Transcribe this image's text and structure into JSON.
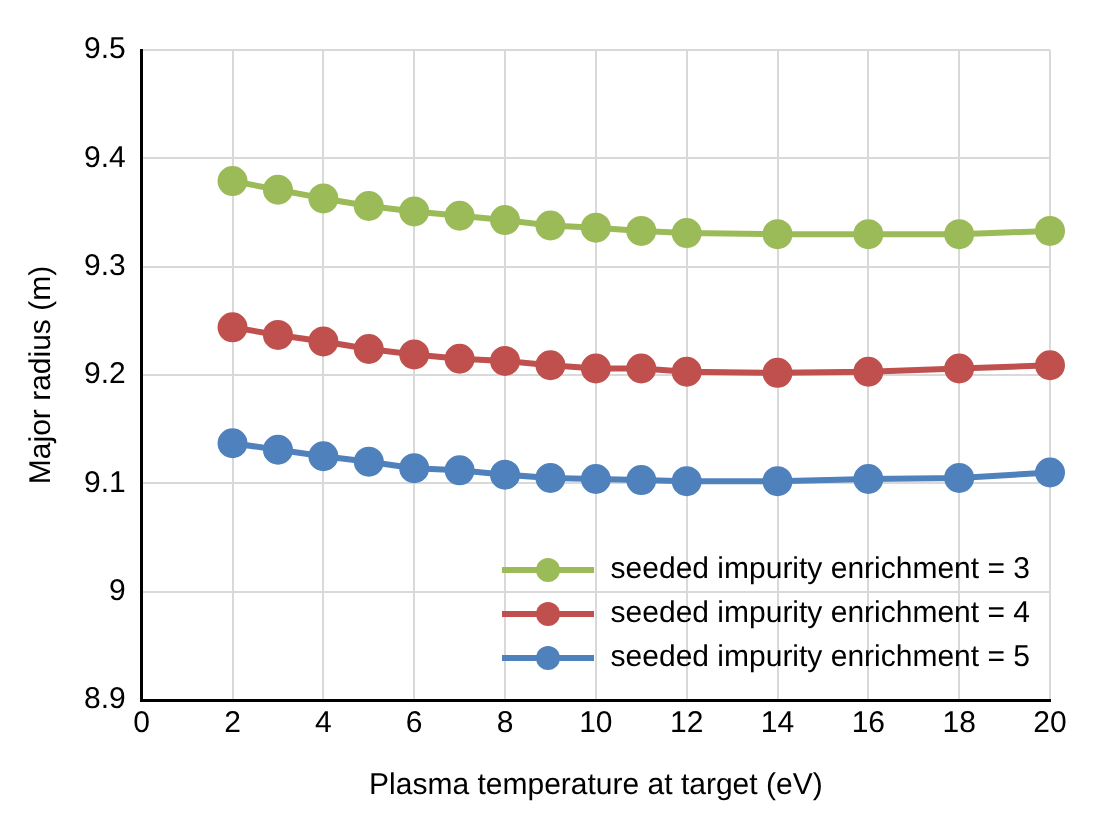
{
  "chart_data": {
    "type": "line",
    "xlabel": "Plasma temperature at target (eV)",
    "ylabel": "Major radius (m)",
    "x": [
      2,
      3,
      4,
      5,
      6,
      7,
      8,
      9,
      10,
      11,
      12,
      14,
      16,
      18,
      20
    ],
    "series": [
      {
        "name": "seeded impurity enrichment = 3",
        "color": "#9bbb59",
        "values": [
          9.379,
          9.371,
          9.363,
          9.356,
          9.351,
          9.347,
          9.343,
          9.338,
          9.336,
          9.333,
          9.331,
          9.33,
          9.33,
          9.33,
          9.333
        ]
      },
      {
        "name": "seeded impurity enrichment = 4",
        "color": "#c0504d",
        "values": [
          9.244,
          9.237,
          9.231,
          9.224,
          9.219,
          9.215,
          9.213,
          9.209,
          9.206,
          9.206,
          9.203,
          9.202,
          9.203,
          9.206,
          9.209
        ]
      },
      {
        "name": "seeded impurity enrichment = 5",
        "color": "#4f81bd",
        "values": [
          9.137,
          9.131,
          9.125,
          9.12,
          9.114,
          9.112,
          9.108,
          9.105,
          9.104,
          9.103,
          9.102,
          9.102,
          9.104,
          9.105,
          9.11
        ]
      }
    ],
    "xlim": [
      0,
      20
    ],
    "xticks": [
      0,
      2,
      4,
      6,
      8,
      10,
      12,
      14,
      16,
      18,
      20
    ],
    "ylim": [
      8.9,
      9.5
    ],
    "yticks": [
      8.9,
      9,
      9.1,
      9.2,
      9.3,
      9.4,
      9.5
    ],
    "grid": true,
    "legend": "bottom right",
    "marker": "circle",
    "line_style": "solid"
  }
}
